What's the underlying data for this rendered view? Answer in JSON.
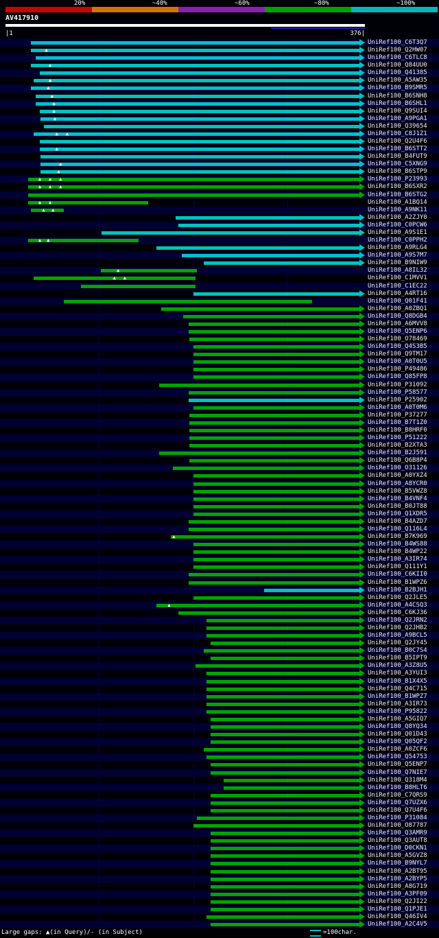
{
  "header": {
    "key": [
      {
        "label": "20%",
        "color": "#cc0000"
      },
      {
        "label": "~40%",
        "color": "#cc7700"
      },
      {
        "label": "~60%",
        "color": "#8822aa"
      },
      {
        "label": "~80%",
        "color": "#00a000"
      },
      {
        "label": "~100%",
        "color": "#00b8b8"
      }
    ],
    "query_name": "AV417910",
    "scale_left": "|1",
    "scale_right": "376|"
  },
  "footer": {
    "left": "Large gaps: ▲(in Query)/- (in Subject)",
    "right_icon": "double-cyan-line",
    "right_text": "=100char."
  },
  "colors": {
    "cyan": "#00c2c2",
    "green": "#00a400",
    "stripe": "#000032",
    "grid": "#000058",
    "query_bar": "#ffffff"
  },
  "chart_data": {
    "type": "bar",
    "subtype": "blast-alignment-overview",
    "query": {
      "name": "AV417910",
      "start": 1,
      "end": 376
    },
    "grid_lines": [
      100,
      200,
      300
    ],
    "identity_key": [
      {
        "label": "20%",
        "color": "#cc0000"
      },
      {
        "label": "~40%",
        "color": "#cc7700"
      },
      {
        "label": "~60%",
        "color": "#8822aa"
      },
      {
        "label": "~80%",
        "color": "#00a000"
      },
      {
        "label": "~100%",
        "color": "#00b8b8"
      }
    ],
    "rows": [
      {
        "id": "UniRef100_C6T3Q7",
        "color": "cyan",
        "qstart": 28
      },
      {
        "id": "UniRef100_Q2HW07",
        "color": "cyan",
        "qstart": 28,
        "gaps": [
          45
        ]
      },
      {
        "id": "UniRef100_C6TLC8",
        "color": "cyan",
        "qstart": 33
      },
      {
        "id": "UniRef100_Q84UU0",
        "color": "cyan",
        "qstart": 28,
        "gaps": [
          49
        ]
      },
      {
        "id": "UniRef100_Q41385",
        "color": "cyan",
        "qstart": 37
      },
      {
        "id": "UniRef100_A5AW35",
        "color": "cyan",
        "qstart": 31,
        "gaps": [
          49
        ]
      },
      {
        "id": "UniRef100_B9SMR5",
        "color": "cyan",
        "qstart": 28,
        "gaps": [
          47
        ]
      },
      {
        "id": "UniRef100_B6SNH8",
        "color": "cyan",
        "qstart": 33,
        "gaps": [
          51
        ]
      },
      {
        "id": "UniRef100_B6SHL1",
        "color": "cyan",
        "qstart": 33,
        "gaps": [
          53
        ]
      },
      {
        "id": "UniRef100_Q9SUI4",
        "color": "cyan",
        "qstart": 37,
        "gaps": [
          53
        ]
      },
      {
        "id": "UniRef100_A9PGA1",
        "color": "cyan",
        "qstart": 38,
        "gaps": [
          54
        ]
      },
      {
        "id": "UniRef100_Q39654",
        "color": "cyan",
        "qstart": 42
      },
      {
        "id": "UniRef100_C8J1Z1",
        "color": "cyan",
        "qstart": 31,
        "gaps": [
          56,
          67
        ]
      },
      {
        "id": "UniRef100_Q2U4F6",
        "color": "cyan",
        "qstart": 37
      },
      {
        "id": "UniRef100_B6STT2",
        "color": "cyan",
        "qstart": 37,
        "gaps": [
          56
        ]
      },
      {
        "id": "UniRef100_B4FUT9",
        "color": "cyan",
        "qstart": 38
      },
      {
        "id": "UniRef100_C5XNG9",
        "color": "cyan",
        "qstart": 38,
        "gaps": [
          60
        ]
      },
      {
        "id": "UniRef100_B6STP9",
        "color": "cyan",
        "qstart": 38,
        "gaps": [
          58
        ]
      },
      {
        "id": "UniRef100_P23993",
        "color": "green",
        "qstart": 25,
        "gaps": [
          38,
          49,
          60
        ]
      },
      {
        "id": "UniRef100_B6SXR2",
        "color": "green",
        "qstart": 25,
        "gaps": [
          38,
          49,
          60
        ]
      },
      {
        "id": "UniRef100_B6STG2",
        "color": "green",
        "qstart": 25
      },
      {
        "id": "UniRef100_A1BQ14",
        "color": "green",
        "qstart": 25,
        "qend": 152,
        "arrow": false,
        "gaps": [
          38,
          49
        ]
      },
      {
        "id": "UniRef100_A9NK11",
        "color": "green",
        "qstart": 28,
        "qend": 63,
        "arrow": false,
        "gaps": [
          42,
          52
        ]
      },
      {
        "id": "UniRef100_A2ZJY0",
        "color": "cyan",
        "qstart": 181
      },
      {
        "id": "UniRef100_C0PCW6",
        "color": "cyan",
        "qstart": 184
      },
      {
        "id": "UniRef100_A9S1E1",
        "color": "cyan",
        "qstart": 103
      },
      {
        "id": "UniRef100_C0PPH2",
        "color": "green",
        "qstart": 25,
        "qend": 142,
        "arrow": false,
        "gaps": [
          38,
          47
        ]
      },
      {
        "id": "UniRef100_A9RLG4",
        "color": "cyan",
        "qstart": 161
      },
      {
        "id": "UniRef100_A9S7M7",
        "color": "cyan",
        "qstart": 188
      },
      {
        "id": "UniRef100_B9NIW9",
        "color": "cyan",
        "qstart": 211
      },
      {
        "id": "UniRef100_A8IL32",
        "color": "green",
        "qstart": 102,
        "qend": 204,
        "arrow": false,
        "gaps": [
          121
        ]
      },
      {
        "id": "UniRef100_C1MVV1",
        "color": "green",
        "qstart": 31,
        "qend": 202,
        "arrow": false,
        "gaps": [
          117,
          128
        ]
      },
      {
        "id": "UniRef100_C1EC22",
        "color": "green",
        "qstart": 81,
        "qend": 202,
        "arrow": false
      },
      {
        "id": "UniRef100_A4RT16",
        "color": "cyan",
        "qstart": 200
      },
      {
        "id": "UniRef100_Q01F41",
        "color": "green",
        "qstart": 63,
        "qend": 326,
        "arrow": false
      },
      {
        "id": "UniRef100_A0ZBQ1",
        "color": "green",
        "qstart": 166
      },
      {
        "id": "UniRef100_Q8DGB4",
        "color": "green",
        "qstart": 189
      },
      {
        "id": "UniRef100_A6MVV8",
        "color": "green",
        "qstart": 195
      },
      {
        "id": "UniRef100_Q5ENP6",
        "color": "green",
        "qstart": 195
      },
      {
        "id": "UniRef100_O78469",
        "color": "green",
        "qstart": 196
      },
      {
        "id": "UniRef100_Q4S3B5",
        "color": "green",
        "qstart": 200
      },
      {
        "id": "UniRef100_Q9TM17",
        "color": "green",
        "qstart": 200
      },
      {
        "id": "UniRef100_A0T0U5",
        "color": "green",
        "qstart": 200
      },
      {
        "id": "UniRef100_P49486",
        "color": "green",
        "qstart": 200
      },
      {
        "id": "UniRef100_Q85FP8",
        "color": "green",
        "qstart": 200
      },
      {
        "id": "UniRef100_P31092",
        "color": "green",
        "qstart": 164
      },
      {
        "id": "UniRef100_P58577",
        "color": "green",
        "qstart": 195
      },
      {
        "id": "UniRef100_P25902",
        "color": "cyan",
        "qstart": 195
      },
      {
        "id": "UniRef100_A0T0M6",
        "color": "green",
        "qstart": 200
      },
      {
        "id": "UniRef100_P37277",
        "color": "green",
        "qstart": 196
      },
      {
        "id": "UniRef100_B7T1Z0",
        "color": "green",
        "qstart": 196
      },
      {
        "id": "UniRef100_B8HRF0",
        "color": "green",
        "qstart": 196
      },
      {
        "id": "UniRef100_P51222",
        "color": "green",
        "qstart": 196
      },
      {
        "id": "UniRef100_B2XTA3",
        "color": "green",
        "qstart": 196
      },
      {
        "id": "UniRef100_B2J591",
        "color": "green",
        "qstart": 164
      },
      {
        "id": "UniRef100_Q6B8P4",
        "color": "green",
        "qstart": 196
      },
      {
        "id": "UniRef100_O31126",
        "color": "green",
        "qstart": 178
      },
      {
        "id": "UniRef100_A0YXZ4",
        "color": "green",
        "qstart": 200
      },
      {
        "id": "UniRef100_A8YCR0",
        "color": "green",
        "qstart": 200
      },
      {
        "id": "UniRef100_B5VWZ8",
        "color": "green",
        "qstart": 200
      },
      {
        "id": "UniRef100_B4VNF4",
        "color": "green",
        "qstart": 200
      },
      {
        "id": "UniRef100_B0JT88",
        "color": "green",
        "qstart": 200
      },
      {
        "id": "UniRef100_Q1XDR5",
        "color": "green",
        "qstart": 200
      },
      {
        "id": "UniRef100_B4AZD7",
        "color": "green",
        "qstart": 195
      },
      {
        "id": "UniRef100_Q116L4",
        "color": "green",
        "qstart": 195
      },
      {
        "id": "UniRef100_B7K969",
        "color": "green",
        "qstart": 176,
        "gaps": [
          180
        ]
      },
      {
        "id": "UniRef100_B4WS88",
        "color": "green",
        "qstart": 200
      },
      {
        "id": "UniRef100_B4WP22",
        "color": "green",
        "qstart": 200
      },
      {
        "id": "UniRef100_A3IR74",
        "color": "green",
        "qstart": 200
      },
      {
        "id": "UniRef100_Q111Y1",
        "color": "green",
        "qstart": 200
      },
      {
        "id": "UniRef100_C6KII0",
        "color": "green",
        "qstart": 195
      },
      {
        "id": "UniRef100_B1WPZ6",
        "color": "green",
        "qstart": 195
      },
      {
        "id": "UniRef100_B2BJH1",
        "color": "cyan",
        "qstart": 275
      },
      {
        "id": "UniRef100_Q2JLE5",
        "color": "green",
        "qstart": 200
      },
      {
        "id": "UniRef100_A4CSQ3",
        "color": "green",
        "qstart": 161,
        "gaps": [
          175
        ]
      },
      {
        "id": "UniRef100_C6KJ36",
        "color": "green",
        "qstart": 184
      },
      {
        "id": "UniRef100_Q2JRN2",
        "color": "green",
        "qstart": 214
      },
      {
        "id": "UniRef100_Q2JHB2",
        "color": "green",
        "qstart": 214
      },
      {
        "id": "UniRef100_A9BCL5",
        "color": "green",
        "qstart": 214
      },
      {
        "id": "UniRef100_Q2JY45",
        "color": "green",
        "qstart": 218
      },
      {
        "id": "UniRef100_B0C7S4",
        "color": "green",
        "qstart": 211
      },
      {
        "id": "UniRef100_B5IPT9",
        "color": "green",
        "qstart": 218
      },
      {
        "id": "UniRef100_A3Z8U5",
        "color": "green",
        "qstart": 202
      },
      {
        "id": "UniRef100_A3YUI3",
        "color": "green",
        "qstart": 214
      },
      {
        "id": "UniRef100_B1X4X5",
        "color": "green",
        "qstart": 214
      },
      {
        "id": "UniRef100_Q4C715",
        "color": "green",
        "qstart": 214
      },
      {
        "id": "UniRef100_B1WPZ7",
        "color": "green",
        "qstart": 214
      },
      {
        "id": "UniRef100_A3IR73",
        "color": "green",
        "qstart": 214
      },
      {
        "id": "UniRef100_P95822",
        "color": "green",
        "qstart": 214
      },
      {
        "id": "UniRef100_A5GIQ7",
        "color": "green",
        "qstart": 218
      },
      {
        "id": "UniRef100_Q8YQ34",
        "color": "green",
        "qstart": 218
      },
      {
        "id": "UniRef100_Q01D43",
        "color": "green",
        "qstart": 218
      },
      {
        "id": "UniRef100_Q05QF2",
        "color": "green",
        "qstart": 218
      },
      {
        "id": "UniRef100_A0ZCF6",
        "color": "green",
        "qstart": 211
      },
      {
        "id": "UniRef100_Q54753",
        "color": "green",
        "qstart": 214
      },
      {
        "id": "UniRef100_Q5ENP7",
        "color": "green",
        "qstart": 218
      },
      {
        "id": "UniRef100_Q7NIE7",
        "color": "green",
        "qstart": 218
      },
      {
        "id": "UniRef100_Q318M4",
        "color": "green",
        "qstart": 232
      },
      {
        "id": "UniRef100_B8HLT6",
        "color": "green",
        "qstart": 232
      },
      {
        "id": "UniRef100_C7QRS9",
        "color": "green",
        "qstart": 218
      },
      {
        "id": "UniRef100_Q7UZX6",
        "color": "green",
        "qstart": 218
      },
      {
        "id": "UniRef100_Q7U4F6",
        "color": "green",
        "qstart": 218
      },
      {
        "id": "UniRef100_P31084",
        "color": "green",
        "qstart": 204
      },
      {
        "id": "UniRef100_O87787",
        "color": "green",
        "qstart": 200
      },
      {
        "id": "UniRef100_Q3AMR9",
        "color": "green",
        "qstart": 218
      },
      {
        "id": "UniRef100_Q3AUT8",
        "color": "green",
        "qstart": 218
      },
      {
        "id": "UniRef100_D0CKN1",
        "color": "green",
        "qstart": 218
      },
      {
        "id": "UniRef100_A5GVZ8",
        "color": "green",
        "qstart": 218
      },
      {
        "id": "UniRef100_B9NYL7",
        "color": "green",
        "qstart": 218
      },
      {
        "id": "UniRef100_A2BT95",
        "color": "green",
        "qstart": 218
      },
      {
        "id": "UniRef100_A2BYP5",
        "color": "green",
        "qstart": 218
      },
      {
        "id": "UniRef100_A8G719",
        "color": "green",
        "qstart": 218
      },
      {
        "id": "UniRef100_A3PF09",
        "color": "green",
        "qstart": 218
      },
      {
        "id": "UniRef100_Q2JI22",
        "color": "green",
        "qstart": 218
      },
      {
        "id": "UniRef100_Q1PJE1",
        "color": "green",
        "qstart": 218
      },
      {
        "id": "UniRef100_Q46IV4",
        "color": "green",
        "qstart": 214
      },
      {
        "id": "UniRef100_A2C4V5",
        "color": "green",
        "qstart": 218
      }
    ]
  }
}
